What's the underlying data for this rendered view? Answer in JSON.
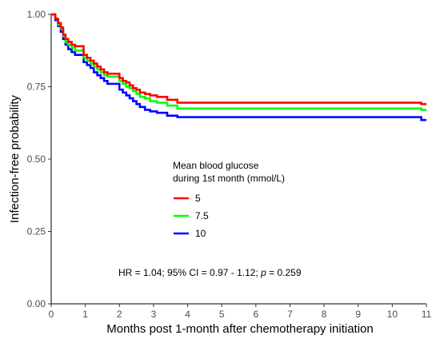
{
  "chart_data": {
    "type": "line",
    "subtype": "step",
    "xlabel": "Months post 1-month after chemotherapy initiation",
    "ylabel": "Infection-free probability",
    "xlim": [
      0,
      11
    ],
    "ylim": [
      0,
      1
    ],
    "x_ticks": [
      0,
      1,
      2,
      3,
      4,
      5,
      6,
      7,
      8,
      9,
      10,
      11
    ],
    "y_ticks": [
      0,
      0.25,
      0.5,
      0.75,
      1
    ],
    "x_tick_labels": [
      "0",
      "1",
      "2",
      "3",
      "4",
      "5",
      "6",
      "7",
      "8",
      "9",
      "10",
      "11"
    ],
    "y_tick_labels": [
      "0.00",
      "0.25",
      "0.50",
      "0.75",
      "1.00"
    ],
    "grid": false,
    "legend": {
      "title_line1": "Mean blood glucose",
      "title_line2": "during 1st month (mmol/L)",
      "placement": "center"
    },
    "annotation": {
      "prefix": "HR = 1.04; 95% CI = 0.97 - 1.12; ",
      "p_symbol": "p",
      "suffix": " = 0.259"
    },
    "series": [
      {
        "name": "5",
        "color": "#ff0000",
        "x": [
          0,
          0.12,
          0.2,
          0.28,
          0.35,
          0.42,
          0.5,
          0.6,
          0.7,
          0.95,
          1.05,
          1.15,
          1.25,
          1.35,
          1.45,
          1.55,
          1.65,
          2.0,
          2.1,
          2.2,
          2.3,
          2.4,
          2.5,
          2.6,
          2.75,
          2.9,
          3.1,
          3.4,
          3.7,
          10.7,
          10.85,
          11.0
        ],
        "y": [
          1.0,
          0.985,
          0.97,
          0.955,
          0.93,
          0.915,
          0.905,
          0.895,
          0.89,
          0.86,
          0.85,
          0.84,
          0.83,
          0.82,
          0.81,
          0.8,
          0.795,
          0.78,
          0.77,
          0.765,
          0.755,
          0.745,
          0.74,
          0.73,
          0.725,
          0.72,
          0.715,
          0.705,
          0.695,
          0.695,
          0.69,
          0.69
        ]
      },
      {
        "name": "7.5",
        "color": "#00ff00",
        "x": [
          0,
          0.12,
          0.2,
          0.28,
          0.35,
          0.42,
          0.5,
          0.6,
          0.7,
          0.95,
          1.05,
          1.15,
          1.25,
          1.35,
          1.45,
          1.55,
          1.65,
          2.0,
          2.1,
          2.2,
          2.3,
          2.4,
          2.5,
          2.6,
          2.75,
          2.9,
          3.1,
          3.4,
          3.7,
          10.7,
          10.85,
          11.0
        ],
        "y": [
          1.0,
          0.985,
          0.965,
          0.95,
          0.925,
          0.905,
          0.895,
          0.885,
          0.875,
          0.85,
          0.84,
          0.83,
          0.82,
          0.81,
          0.8,
          0.79,
          0.785,
          0.77,
          0.76,
          0.75,
          0.745,
          0.735,
          0.725,
          0.715,
          0.71,
          0.7,
          0.695,
          0.685,
          0.675,
          0.675,
          0.67,
          0.67
        ]
      },
      {
        "name": "10",
        "color": "#0000ff",
        "x": [
          0,
          0.12,
          0.2,
          0.28,
          0.35,
          0.42,
          0.5,
          0.6,
          0.7,
          0.95,
          1.05,
          1.15,
          1.25,
          1.35,
          1.45,
          1.55,
          1.65,
          2.0,
          2.1,
          2.2,
          2.3,
          2.4,
          2.5,
          2.6,
          2.75,
          2.9,
          3.1,
          3.4,
          3.7,
          10.7,
          10.85,
          11.0
        ],
        "y": [
          1.0,
          0.98,
          0.96,
          0.94,
          0.915,
          0.895,
          0.88,
          0.87,
          0.86,
          0.835,
          0.825,
          0.815,
          0.8,
          0.79,
          0.78,
          0.77,
          0.76,
          0.74,
          0.73,
          0.72,
          0.71,
          0.7,
          0.69,
          0.68,
          0.67,
          0.665,
          0.66,
          0.65,
          0.645,
          0.645,
          0.635,
          0.635
        ]
      }
    ]
  }
}
